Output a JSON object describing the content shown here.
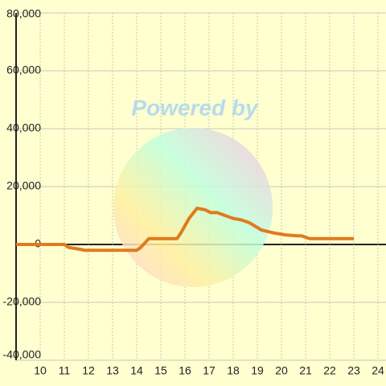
{
  "chart_data": {
    "type": "line",
    "watermark": "Powered by",
    "x": [
      9.0,
      11.0,
      11.17,
      11.67,
      11.83,
      14.0,
      14.17,
      14.5,
      15.67,
      15.83,
      16.17,
      16.5,
      16.83,
      17.07,
      17.33,
      18.0,
      18.33,
      18.67,
      19.17,
      19.67,
      20.17,
      20.67,
      20.83,
      21.17,
      23.0
    ],
    "series": [
      {
        "color": "#e07a1f",
        "values": [
          0,
          0,
          -1000,
          -1700,
          -2000,
          -2000,
          -1000,
          2000,
          2000,
          4000,
          9000,
          12500,
          12000,
          11000,
          11000,
          9000,
          8500,
          7500,
          5000,
          4000,
          3300,
          3000,
          3000,
          2000,
          2000
        ]
      }
    ],
    "xlim": [
      9,
      24.333
    ],
    "ylim": [
      -40000,
      80000
    ],
    "xticks": [
      10,
      11,
      12,
      13,
      14,
      15,
      16,
      17,
      18,
      19,
      20,
      21,
      22,
      23,
      24
    ],
    "yticks": [
      {
        "value": -40000,
        "label": "-40,000"
      },
      {
        "value": -20000,
        "label": "-20,000"
      },
      0,
      {
        "value": 20000,
        "label": "20,000"
      },
      {
        "value": 40000,
        "label": "40,000"
      },
      {
        "value": 60000,
        "label": "60,000"
      },
      {
        "value": 80000,
        "label": "80,000"
      }
    ],
    "grid": true
  }
}
